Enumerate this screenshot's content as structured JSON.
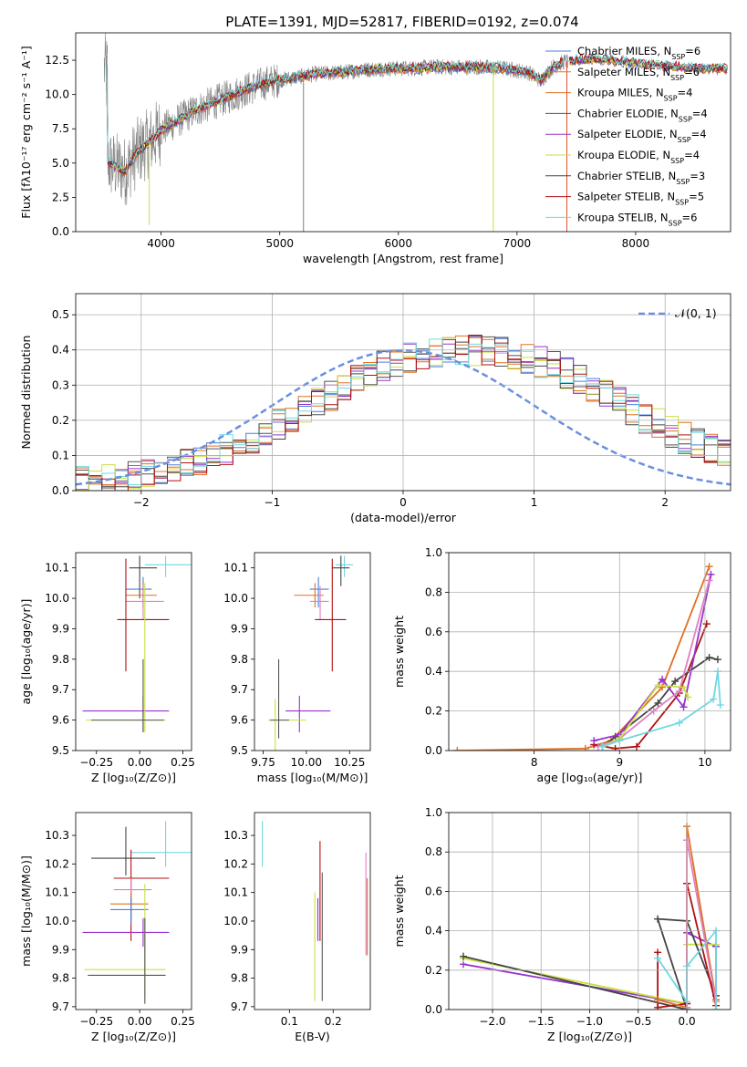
{
  "figure_title": "PLATE=1391, MJD=52817, FIBERID=0192, z=0.074",
  "colors": {
    "Chabrier MILES": "#4a7fe0",
    "Salpeter MILES": "#e07020",
    "Kroupa MILES": "#e07020",
    "Chabrier ELODIE": "#555555",
    "Salpeter ELODIE": "#9932cc",
    "Kroupa ELODIE": "#c8e040",
    "Chabrier STELIB": "#444444",
    "Salpeter STELIB": "#b01010",
    "Kroupa STELIB": "#70d8e0",
    "gaussian": "#6a8fe0",
    "observed": "#808080",
    "pink": "#e080c0"
  },
  "chart_data": [
    {
      "id": "spectrum",
      "type": "line",
      "title": "PLATE=1391, MJD=52817, FIBERID=0192, z=0.074",
      "xlabel": "wavelength [Angstrom, rest frame]",
      "ylabel": "Flux [fλ10⁻¹⁷ erg cm⁻² s⁻¹ A⁻¹]",
      "xlim": [
        3280,
        8800
      ],
      "ylim": [
        0,
        14.5
      ],
      "xticks": [
        "4000",
        "5000",
        "6000",
        "7000",
        "8000"
      ],
      "yticks": [
        "0.0",
        "2.5",
        "5.0",
        "7.5",
        "10.0",
        "12.5"
      ],
      "legend_position": "right",
      "legend": [
        {
          "name": "Chabrier MILES",
          "sub": "SSP",
          "n": "=6"
        },
        {
          "name": "Salpeter MILES",
          "sub": "SSP",
          "n": "=6"
        },
        {
          "name": "Kroupa MILES",
          "sub": "SSP",
          "n": "=4"
        },
        {
          "name": "Chabrier ELODIE",
          "sub": "SSP",
          "n": "=4"
        },
        {
          "name": "Salpeter ELODIE",
          "sub": "SSP",
          "n": "=4"
        },
        {
          "name": "Kroupa ELODIE",
          "sub": "SSP",
          "n": "=4"
        },
        {
          "name": "Chabrier STELIB",
          "sub": "SSP",
          "n": "=3"
        },
        {
          "name": "Salpeter STELIB",
          "sub": "SSP",
          "n": "=5"
        },
        {
          "name": "Kroupa STELIB",
          "sub": "SSP",
          "n": "=6"
        }
      ],
      "continuum": {
        "x": [
          3550,
          3700,
          3800,
          3900,
          4000,
          4100,
          4300,
          4500,
          4700,
          4900,
          5100,
          5300,
          5500,
          5700,
          5900,
          6100,
          6300,
          6500,
          6700,
          6900,
          7100,
          7200,
          7300,
          7400,
          7600,
          7800,
          8000,
          8200,
          8400,
          8600
        ],
        "y": [
          5.0,
          4.4,
          5.8,
          6.5,
          7.4,
          7.9,
          8.9,
          9.6,
          10.3,
          10.9,
          11.2,
          11.5,
          11.6,
          11.8,
          11.9,
          11.9,
          12.0,
          12.0,
          12.0,
          11.9,
          11.6,
          11.0,
          12.0,
          12.4,
          12.6,
          12.5,
          12.3,
          12.1,
          12.0,
          11.9
        ]
      },
      "spikes": [
        {
          "x": 5200,
          "y": 0.0,
          "color": "#808080"
        },
        {
          "x": 6800,
          "y": 0.0,
          "color": "#c8e040"
        },
        {
          "x": 3900,
          "y": 0.5,
          "color": "#c8e040"
        },
        {
          "x": 7420,
          "y": 0.0,
          "color": "#e05030"
        }
      ]
    },
    {
      "id": "residuals",
      "type": "bar",
      "xlabel": "(data-model)/error",
      "ylabel": "Normed distribution",
      "xlim": [
        -2.5,
        2.5
      ],
      "ylim": [
        0,
        0.56
      ],
      "xticks": [
        "−2",
        "−1",
        "0",
        "1",
        "2"
      ],
      "yticks": [
        "0.0",
        "0.1",
        "0.2",
        "0.3",
        "0.4",
        "0.5"
      ],
      "grid": true,
      "legend_position": "top-right",
      "legend": [
        {
          "name": "𝒩(0, 1)"
        }
      ],
      "bin_width": 0.1,
      "bin_start": -2.5,
      "envelope": [
        0.025,
        0.028,
        0.031,
        0.035,
        0.04,
        0.046,
        0.054,
        0.063,
        0.074,
        0.086,
        0.1,
        0.115,
        0.132,
        0.15,
        0.168,
        0.188,
        0.208,
        0.228,
        0.25,
        0.272,
        0.295,
        0.315,
        0.335,
        0.352,
        0.366,
        0.378,
        0.388,
        0.394,
        0.398,
        0.4,
        0.4,
        0.398,
        0.394,
        0.388,
        0.378,
        0.366,
        0.352,
        0.335,
        0.315,
        0.295,
        0.272,
        0.25,
        0.228,
        0.208,
        0.188,
        0.168,
        0.15,
        0.132,
        0.115,
        0.1
      ]
    },
    {
      "id": "age-vs-Z",
      "type": "scatter",
      "xlabel": "Z [log₁₀(Z/Z⊙)]",
      "ylabel": "age  [log₁₀(age/yr)]",
      "xlim": [
        -0.37,
        0.3
      ],
      "ylim": [
        9.5,
        10.15
      ],
      "xticks": [
        "−0.25",
        "0.00",
        "0.25"
      ],
      "yticks": [
        "9.5",
        "9.6",
        "9.7",
        "9.8",
        "9.9",
        "10.0",
        "10.1"
      ],
      "points": [
        {
          "x": 0.0,
          "y": 10.1,
          "xerr": [
            0.06,
            0.1
          ],
          "yerr": [
            0.1,
            0.04
          ],
          "color": "#444444"
        },
        {
          "x": 0.15,
          "y": 10.11,
          "xerr": [
            0.12,
            0.15
          ],
          "yerr": [
            0.04,
            0.03
          ],
          "color": "#70d8e0"
        },
        {
          "x": 0.02,
          "y": 10.03,
          "xerr": [
            0.1,
            0.05
          ],
          "yerr": [
            0.06,
            0.04
          ],
          "color": "#4a7fe0"
        },
        {
          "x": 0.02,
          "y": 10.01,
          "xerr": [
            0.1,
            0.08
          ],
          "yerr": [
            0.04,
            0.04
          ],
          "color": "#e07020"
        },
        {
          "x": 0.02,
          "y": 9.99,
          "xerr": [
            0.1,
            0.12
          ],
          "yerr": [
            0.06,
            0.05
          ],
          "color": "#e080c0"
        },
        {
          "x": -0.08,
          "y": 9.93,
          "xerr": [
            0.05,
            0.25
          ],
          "yerr": [
            0.17,
            0.2
          ],
          "color": "#b01010"
        },
        {
          "x": 0.02,
          "y": 9.63,
          "xerr": [
            0.35,
            0.15
          ],
          "yerr": [
            0.07,
            0.05
          ],
          "color": "#9932cc"
        },
        {
          "x": 0.03,
          "y": 9.6,
          "xerr": [
            0.34,
            0.12
          ],
          "yerr": [
            0.04,
            0.45
          ],
          "color": "#c8e040"
        },
        {
          "x": 0.02,
          "y": 9.6,
          "xerr": [
            0.3,
            0.12
          ],
          "yerr": [
            0.04,
            0.2
          ],
          "color": "#555555"
        }
      ]
    },
    {
      "id": "age-vs-mass",
      "type": "scatter",
      "xlabel": "mass [log₁₀(M/M⊙)]",
      "xlim": [
        9.7,
        10.37
      ],
      "ylim": [
        9.5,
        10.15
      ],
      "xticks": [
        "9.75",
        "10.00",
        "10.25"
      ],
      "yticks": [
        "9.5",
        "9.6",
        "9.7",
        "9.8",
        "9.9",
        "10.0",
        "10.1"
      ],
      "points": [
        {
          "x": 10.22,
          "y": 10.11,
          "xerr": [
            0.05,
            0.05
          ],
          "yerr": [
            0.04,
            0.03
          ],
          "color": "#70d8e0"
        },
        {
          "x": 10.2,
          "y": 10.1,
          "xerr": [
            0.05,
            0.05
          ],
          "yerr": [
            0.06,
            0.04
          ],
          "color": "#444444"
        },
        {
          "x": 10.07,
          "y": 10.03,
          "xerr": [
            0.05,
            0.06
          ],
          "yerr": [
            0.06,
            0.04
          ],
          "color": "#4a7fe0"
        },
        {
          "x": 10.05,
          "y": 10.01,
          "xerr": [
            0.12,
            0.05
          ],
          "yerr": [
            0.04,
            0.04
          ],
          "color": "#e07020"
        },
        {
          "x": 10.08,
          "y": 9.99,
          "xerr": [
            0.06,
            0.05
          ],
          "yerr": [
            0.06,
            0.05
          ],
          "color": "#e080c0"
        },
        {
          "x": 10.15,
          "y": 9.93,
          "xerr": [
            0.1,
            0.08
          ],
          "yerr": [
            0.17,
            0.2
          ],
          "color": "#b01010"
        },
        {
          "x": 9.96,
          "y": 9.63,
          "xerr": [
            0.08,
            0.18
          ],
          "yerr": [
            0.07,
            0.05
          ],
          "color": "#9932cc"
        },
        {
          "x": 9.82,
          "y": 9.6,
          "xerr": [
            0.04,
            0.18
          ],
          "yerr": [
            0.4,
            0.07
          ],
          "color": "#c8e040"
        },
        {
          "x": 9.84,
          "y": 9.6,
          "xerr": [
            0.05,
            0.06
          ],
          "yerr": [
            0.06,
            0.2
          ],
          "color": "#555555"
        }
      ]
    },
    {
      "id": "mass-weight-vs-age",
      "type": "line",
      "xlabel": "age  [log₁₀(age/yr)]",
      "ylabel": "mass weight",
      "xlim": [
        7,
        10.3
      ],
      "ylim": [
        0,
        1
      ],
      "xticks": [
        "8",
        "9",
        "10"
      ],
      "yticks": [
        "0.0",
        "0.2",
        "0.4",
        "0.6",
        "0.8",
        "1.0"
      ],
      "grid": true,
      "series": [
        {
          "color": "#e07020",
          "x": [
            7.1,
            8.6,
            8.9,
            9.5,
            10.05
          ],
          "y": [
            0.0,
            0.01,
            0.05,
            0.32,
            0.93
          ]
        },
        {
          "color": "#b01010",
          "x": [
            8.7,
            8.95,
            9.2,
            9.7,
            10.02
          ],
          "y": [
            0.03,
            0.01,
            0.02,
            0.29,
            0.64
          ]
        },
        {
          "color": "#444444",
          "x": [
            8.8,
            8.95,
            9.45,
            9.65,
            10.05,
            10.15
          ],
          "y": [
            0.02,
            0.07,
            0.24,
            0.35,
            0.47,
            0.46
          ]
        },
        {
          "color": "#9932cc",
          "x": [
            8.7,
            9.0,
            9.5,
            9.75,
            10.07
          ],
          "y": [
            0.05,
            0.08,
            0.36,
            0.22,
            0.89
          ]
        },
        {
          "color": "#e080c0",
          "x": [
            8.75,
            9.0,
            9.4,
            9.7,
            10.05
          ],
          "y": [
            0.02,
            0.06,
            0.2,
            0.3,
            0.86
          ]
        },
        {
          "color": "#c8e040",
          "x": [
            8.8,
            9.0,
            9.45,
            9.75,
            9.8
          ],
          "y": [
            0.02,
            0.06,
            0.33,
            0.32,
            0.27
          ]
        },
        {
          "color": "#70d8e0",
          "x": [
            8.8,
            9.0,
            9.7,
            10.1,
            10.15,
            10.18
          ],
          "y": [
            0.02,
            0.05,
            0.14,
            0.26,
            0.4,
            0.23
          ]
        }
      ]
    },
    {
      "id": "mass-vs-Z",
      "type": "scatter",
      "xlabel": "Z [log₁₀(Z/Z⊙)]",
      "ylabel": "mass [log₁₀(M/M⊙)]",
      "xlim": [
        -0.37,
        0.3
      ],
      "ylim": [
        9.69,
        10.38
      ],
      "xticks": [
        "−0.25",
        "0.00",
        "0.25"
      ],
      "yticks": [
        "9.7",
        "9.8",
        "9.9",
        "10.0",
        "10.1",
        "10.2",
        "10.3"
      ],
      "points": [
        {
          "x": -0.08,
          "y": 10.22,
          "xerr": [
            0.2,
            0.17
          ],
          "yerr": [
            0.06,
            0.11
          ],
          "color": "#444444"
        },
        {
          "x": 0.15,
          "y": 10.24,
          "xerr": [
            0.2,
            0.15
          ],
          "yerr": [
            0.05,
            0.11
          ],
          "color": "#70d8e0"
        },
        {
          "x": -0.05,
          "y": 10.15,
          "xerr": [
            0.1,
            0.22
          ],
          "yerr": [
            0.22,
            0.1
          ],
          "color": "#b01010"
        },
        {
          "x": -0.05,
          "y": 10.11,
          "xerr": [
            0.1,
            0.12
          ],
          "yerr": [
            0.06,
            0.04
          ],
          "color": "#e080c0"
        },
        {
          "x": -0.05,
          "y": 10.06,
          "xerr": [
            0.12,
            0.1
          ],
          "yerr": [
            0.05,
            0.04
          ],
          "color": "#e07020"
        },
        {
          "x": -0.05,
          "y": 10.04,
          "xerr": [
            0.12,
            0.1
          ],
          "yerr": [
            0.05,
            0.04
          ],
          "color": "#4a7fe0"
        },
        {
          "x": 0.02,
          "y": 9.96,
          "xerr": [
            0.35,
            0.15
          ],
          "yerr": [
            0.05,
            0.05
          ],
          "color": "#9932cc"
        },
        {
          "x": 0.03,
          "y": 9.83,
          "xerr": [
            0.35,
            0.12
          ],
          "yerr": [
            0.1,
            0.3
          ],
          "color": "#c8e040"
        },
        {
          "x": 0.03,
          "y": 9.81,
          "xerr": [
            0.33,
            0.12
          ],
          "yerr": [
            0.1,
            0.2
          ],
          "color": "#555555"
        }
      ]
    },
    {
      "id": "mass-vs-EBV",
      "type": "scatter",
      "xlabel": "E(B-V)",
      "xlim": [
        0.02,
        0.285
      ],
      "ylim": [
        9.69,
        10.38
      ],
      "xticks": [
        "0.1",
        "0.2"
      ],
      "yticks": [
        "9.7",
        "9.8",
        "9.9",
        "10.0",
        "10.1",
        "10.2",
        "10.3"
      ],
      "points": [
        {
          "x": 0.038,
          "y": 10.27,
          "xerr": [
            0,
            0
          ],
          "yerr": [
            0.08,
            0.08
          ],
          "color": "#70d8e0"
        },
        {
          "x": 0.17,
          "y": 10.1,
          "xerr": [
            0,
            0
          ],
          "yerr": [
            0.17,
            0.18
          ],
          "color": "#b01010"
        },
        {
          "x": 0.165,
          "y": 10.0,
          "xerr": [
            0,
            0
          ],
          "yerr": [
            0.07,
            0.08
          ],
          "color": "#9932cc"
        },
        {
          "x": 0.175,
          "y": 10.0,
          "xerr": [
            0,
            0
          ],
          "yerr": [
            0.28,
            0.17
          ],
          "color": "#555555"
        },
        {
          "x": 0.158,
          "y": 9.92,
          "xerr": [
            0,
            0
          ],
          "yerr": [
            0.2,
            0.18
          ],
          "color": "#c8e040"
        },
        {
          "x": 0.275,
          "y": 10.05,
          "xerr": [
            0,
            0
          ],
          "yerr": [
            0.17,
            0.19
          ],
          "color": "#e080c0"
        },
        {
          "x": 0.278,
          "y": 10.0,
          "xerr": [
            0,
            0
          ],
          "yerr": [
            0.12,
            0.15
          ],
          "color": "#e07020"
        }
      ]
    },
    {
      "id": "mass-weight-vs-Z",
      "type": "line",
      "xlabel": "Z [log₁₀(Z/Z⊙)]",
      "ylabel": "mass weight",
      "xlim": [
        -2.45,
        0.45
      ],
      "ylim": [
        0,
        1
      ],
      "xticks": [
        "−2.0",
        "−1.5",
        "−1.0",
        "−0.5",
        "0.0"
      ],
      "yticks": [
        "0.0",
        "0.2",
        "0.4",
        "0.6",
        "0.8",
        "1.0"
      ],
      "grid": true,
      "series": [
        {
          "color": "#9932cc",
          "x": [
            -2.3,
            0.0,
            0.0,
            0.3,
            0.3
          ],
          "y": [
            0.23,
            0.03,
            0.39,
            0.32,
            0.05
          ]
        },
        {
          "color": "#c8e040",
          "x": [
            -2.3,
            0.0,
            0.0,
            0.3
          ],
          "y": [
            0.26,
            0.03,
            0.33,
            0.33
          ]
        },
        {
          "color": "#444444",
          "x": [
            -2.3,
            0.0,
            -0.3,
            0.0,
            0.3
          ],
          "y": [
            0.27,
            0.0,
            0.46,
            0.45,
            0.07
          ]
        },
        {
          "color": "#b01010",
          "x": [
            -0.3,
            -0.3,
            0.0,
            0.0,
            0.3
          ],
          "y": [
            0.29,
            0.01,
            0.03,
            0.64,
            0.02
          ]
        },
        {
          "color": "#e07020",
          "x": [
            -0.3,
            0.0,
            0.0,
            0.3
          ],
          "y": [
            0.05,
            0.01,
            0.93,
            0.05
          ]
        },
        {
          "color": "#e080c0",
          "x": [
            0.0,
            0.0,
            0.3
          ],
          "y": [
            0.01,
            0.86,
            0.04
          ]
        },
        {
          "color": "#70d8e0",
          "x": [
            -0.3,
            0.0,
            0.0,
            0.3,
            0.3
          ],
          "y": [
            0.26,
            0.04,
            0.22,
            0.4,
            0.0
          ]
        }
      ]
    }
  ]
}
